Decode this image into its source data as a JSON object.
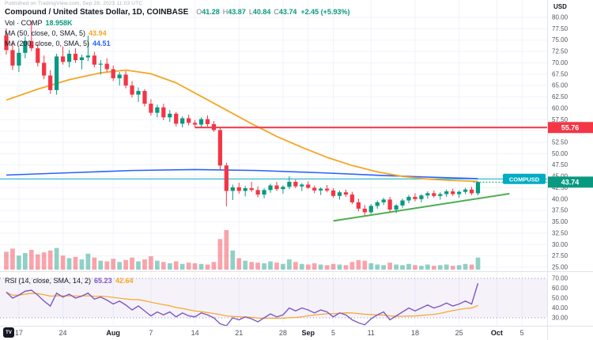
{
  "watermark": "Published on TradingView.com, Sep 28, 2023 11:03 UTC",
  "header": {
    "symbol_title": "Compound / United States Dollar, 1D, COINBASE",
    "ohlc": {
      "o_label": "O",
      "h_label": "H",
      "l_label": "L",
      "c_label": "C",
      "o": "41.28",
      "h": "43.87",
      "l": "40.84",
      "c": "43.74",
      "change": "+2.45 (+5.93%)",
      "up_color": "#089981"
    },
    "indicators": [
      {
        "label": "Vol · COMP",
        "value": "18.958K",
        "color": "#089981"
      },
      {
        "label": "MA (50, close, 0, SMA, 5)",
        "value": "43.94",
        "color": "#f5a623"
      },
      {
        "label": "MA (200, close, 0, SMA, 5)",
        "value": "44.51",
        "color": "#2962ff"
      }
    ]
  },
  "rsi_pane": {
    "label": "RSI (14, close, SMA, 14, 2)",
    "value": "65.23",
    "ma_value": "42.64",
    "value_color": "#7e57c2",
    "ma_color": "#f5a623"
  },
  "price_axis": {
    "unit": "USD",
    "min": 25,
    "max": 80,
    "step": 2.5
  },
  "rsi_axis": {
    "ticks": [
      70,
      60,
      50,
      40,
      30
    ],
    "band": [
      30,
      70
    ]
  },
  "time_axis": {
    "labels": [
      {
        "text": "17",
        "slot": 2
      },
      {
        "text": "24",
        "slot": 9
      },
      {
        "text": "Aug",
        "slot": 17,
        "major": true
      },
      {
        "text": "7",
        "slot": 23
      },
      {
        "text": "14",
        "slot": 30
      },
      {
        "text": "21",
        "slot": 37
      },
      {
        "text": "28",
        "slot": 44
      },
      {
        "text": "Sep",
        "slot": 48,
        "major": true
      },
      {
        "text": "5",
        "slot": 52
      },
      {
        "text": "11",
        "slot": 58
      },
      {
        "text": "18",
        "slot": 65
      },
      {
        "text": "25",
        "slot": 72
      },
      {
        "text": "Oct",
        "slot": 78,
        "major": true
      },
      {
        "text": "5",
        "slot": 82
      }
    ]
  },
  "chart_data": {
    "type": "candlestick",
    "symbol": "COMPUSD",
    "interval": "1D",
    "exchange": "COINBASE",
    "title": "Compound / United States Dollar",
    "slots": 86,
    "ylim": [
      25,
      80
    ],
    "candles": [
      [
        76.0,
        77.6,
        71.8,
        72.8
      ],
      [
        72.8,
        74.6,
        68.4,
        69.4
      ],
      [
        69.4,
        73.2,
        68.0,
        72.2
      ],
      [
        72.2,
        75.8,
        71.0,
        74.8
      ],
      [
        74.8,
        79.2,
        72.6,
        73.2
      ],
      [
        73.2,
        74.2,
        69.2,
        70.0
      ],
      [
        70.0,
        71.6,
        66.4,
        67.2
      ],
      [
        67.2,
        68.4,
        63.2,
        64.0
      ],
      [
        64.0,
        72.0,
        63.0,
        71.4
      ],
      [
        71.4,
        73.6,
        69.6,
        70.2
      ],
      [
        70.2,
        72.8,
        69.0,
        72.0
      ],
      [
        72.0,
        73.2,
        70.0,
        70.6
      ],
      [
        70.6,
        71.8,
        68.6,
        71.2
      ],
      [
        71.2,
        76.0,
        70.4,
        71.6
      ],
      [
        71.6,
        72.4,
        69.0,
        69.6
      ],
      [
        69.6,
        70.6,
        67.4,
        69.8
      ],
      [
        69.8,
        71.0,
        68.0,
        68.6
      ],
      [
        68.6,
        69.4,
        66.0,
        66.6
      ],
      [
        66.6,
        68.0,
        65.0,
        67.4
      ],
      [
        67.4,
        68.2,
        64.4,
        65.0
      ],
      [
        65.0,
        66.0,
        62.4,
        63.0
      ],
      [
        63.0,
        64.6,
        61.4,
        63.8
      ],
      [
        63.8,
        64.2,
        60.4,
        61.0
      ],
      [
        61.0,
        62.0,
        58.4,
        59.0
      ],
      [
        59.0,
        60.8,
        58.0,
        60.2
      ],
      [
        60.2,
        61.0,
        57.4,
        58.0
      ],
      [
        58.0,
        59.6,
        57.0,
        58.8
      ],
      [
        58.8,
        59.2,
        56.0,
        56.6
      ],
      [
        56.6,
        58.2,
        55.8,
        57.8
      ],
      [
        57.8,
        58.6,
        56.2,
        56.8
      ],
      [
        56.8,
        57.4,
        55.7,
        56.4
      ],
      [
        56.4,
        58.0,
        55.9,
        57.6
      ],
      [
        57.6,
        58.4,
        56.0,
        56.5
      ],
      [
        56.5,
        57.2,
        54.8,
        55.2
      ],
      [
        55.2,
        55.8,
        46.4,
        47.4
      ],
      [
        47.4,
        48.0,
        38.4,
        41.8
      ],
      [
        41.8,
        43.2,
        39.8,
        42.6
      ],
      [
        42.6,
        43.6,
        41.2,
        41.8
      ],
      [
        41.8,
        42.9,
        40.6,
        42.4
      ],
      [
        42.4,
        43.8,
        41.6,
        42.0
      ],
      [
        42.0,
        42.8,
        40.4,
        41.0
      ],
      [
        41.0,
        42.4,
        40.2,
        42.0
      ],
      [
        42.0,
        43.4,
        41.4,
        43.0
      ],
      [
        43.0,
        43.8,
        41.8,
        42.2
      ],
      [
        42.2,
        43.0,
        41.2,
        42.7
      ],
      [
        42.7,
        45.0,
        42.2,
        43.8
      ],
      [
        43.8,
        44.3,
        42.4,
        42.8
      ],
      [
        42.8,
        43.5,
        41.8,
        43.2
      ],
      [
        43.2,
        43.9,
        42.2,
        42.5
      ],
      [
        42.5,
        43.0,
        41.3,
        41.9
      ],
      [
        41.9,
        42.6,
        40.9,
        42.3
      ],
      [
        42.3,
        43.1,
        41.5,
        41.9
      ],
      [
        41.9,
        42.4,
        40.3,
        40.7
      ],
      [
        40.7,
        41.9,
        39.9,
        41.5
      ],
      [
        41.5,
        42.1,
        40.5,
        41.0
      ],
      [
        41.0,
        41.6,
        38.9,
        39.3
      ],
      [
        39.3,
        40.1,
        37.3,
        37.9
      ],
      [
        37.9,
        38.7,
        36.4,
        37.1
      ],
      [
        37.1,
        38.9,
        36.7,
        38.5
      ],
      [
        38.5,
        39.7,
        37.9,
        39.3
      ],
      [
        39.3,
        40.3,
        38.7,
        39.9
      ],
      [
        39.9,
        40.5,
        37.1,
        37.7
      ],
      [
        37.7,
        38.9,
        36.9,
        38.6
      ],
      [
        38.6,
        40.1,
        38.1,
        39.7
      ],
      [
        39.7,
        40.9,
        39.1,
        40.5
      ],
      [
        40.5,
        41.3,
        39.5,
        40.0
      ],
      [
        40.0,
        41.1,
        39.3,
        40.8
      ],
      [
        40.8,
        41.7,
        40.1,
        41.3
      ],
      [
        41.3,
        41.9,
        40.3,
        40.7
      ],
      [
        40.7,
        41.5,
        39.9,
        41.1
      ],
      [
        41.1,
        42.1,
        40.5,
        41.7
      ],
      [
        41.7,
        42.3,
        40.7,
        41.1
      ],
      [
        41.1,
        41.9,
        40.3,
        41.6
      ],
      [
        41.6,
        42.5,
        41.1,
        42.1
      ],
      [
        42.1,
        42.7,
        40.9,
        41.28
      ],
      [
        41.28,
        43.87,
        40.84,
        43.74
      ]
    ],
    "volumes": [
      28,
      33,
      22,
      26,
      31,
      24,
      27,
      30,
      34,
      22,
      18,
      20,
      16,
      25,
      19,
      14,
      13,
      17,
      12,
      15,
      19,
      13,
      16,
      21,
      14,
      12,
      10,
      13,
      9,
      11,
      10,
      9,
      8,
      12,
      48,
      62,
      30,
      18,
      14,
      12,
      11,
      10,
      13,
      11,
      9,
      16,
      12,
      9,
      8,
      10,
      8,
      7,
      9,
      8,
      7,
      12,
      15,
      14,
      10,
      8,
      7,
      11,
      8,
      7,
      9,
      7,
      6,
      8,
      6,
      7,
      8,
      6,
      7,
      9,
      8,
      18.958
    ],
    "ma50": [
      [
        0,
        61.8
      ],
      [
        5,
        64.2
      ],
      [
        10,
        66.3
      ],
      [
        15,
        67.8
      ],
      [
        19,
        68.4
      ],
      [
        23,
        67.6
      ],
      [
        27,
        65.6
      ],
      [
        31,
        62.6
      ],
      [
        35,
        59.6
      ],
      [
        39,
        56.6
      ],
      [
        43,
        53.8
      ],
      [
        47,
        51.4
      ],
      [
        51,
        49.2
      ],
      [
        55,
        47.4
      ],
      [
        59,
        46.0
      ],
      [
        63,
        45.0
      ],
      [
        67,
        44.4
      ],
      [
        71,
        44.1
      ],
      [
        75,
        43.9
      ]
    ],
    "ma200": [
      [
        0,
        45.3
      ],
      [
        10,
        45.8
      ],
      [
        20,
        46.3
      ],
      [
        30,
        46.5
      ],
      [
        40,
        46.3
      ],
      [
        50,
        45.8
      ],
      [
        60,
        45.2
      ],
      [
        68,
        44.8
      ],
      [
        75,
        44.5
      ]
    ],
    "rsi": [
      56,
      50,
      53,
      57,
      58,
      53,
      47,
      42,
      55,
      51,
      54,
      50,
      52,
      55,
      49,
      51,
      48,
      44,
      47,
      43,
      38,
      42,
      37,
      32,
      36,
      33,
      36,
      31,
      35,
      32,
      31,
      35,
      33,
      30,
      24,
      22,
      30,
      28,
      31,
      29,
      26,
      30,
      34,
      31,
      33,
      40,
      37,
      40,
      38,
      35,
      38,
      36,
      31,
      35,
      33,
      28,
      25,
      23,
      29,
      33,
      36,
      28,
      32,
      36,
      40,
      37,
      40,
      43,
      40,
      42,
      45,
      42,
      44,
      47,
      44,
      65
    ],
    "rsi_ma_length": 14,
    "levels": {
      "resistance": {
        "value": 55.76,
        "start_slot": 30,
        "color": "#f23645"
      },
      "price_line": {
        "value": 44.45,
        "label": "COMPUSD",
        "color": "#00acc1"
      },
      "last_price": {
        "value": 43.74,
        "color": "#089981"
      }
    },
    "trendline": {
      "from": [
        52,
        35.2
      ],
      "to": [
        80,
        41.2
      ],
      "color": "#4caf50"
    },
    "colors": {
      "up": "#089981",
      "down": "#f23645",
      "vol_up": "rgba(8,153,129,0.45)",
      "vol_down": "rgba(242,54,69,0.45)",
      "ma50": "#f5a623",
      "ma200": "#2962ff",
      "rsi": "#7e57c2",
      "rsi_ma": "#f5a623",
      "grid": "#f0f3fa",
      "axis_text": "#50535e",
      "separator": "#e0e3eb",
      "band_fill": "rgba(126,87,194,0.08)",
      "band_line": "#9b8bc4"
    }
  }
}
